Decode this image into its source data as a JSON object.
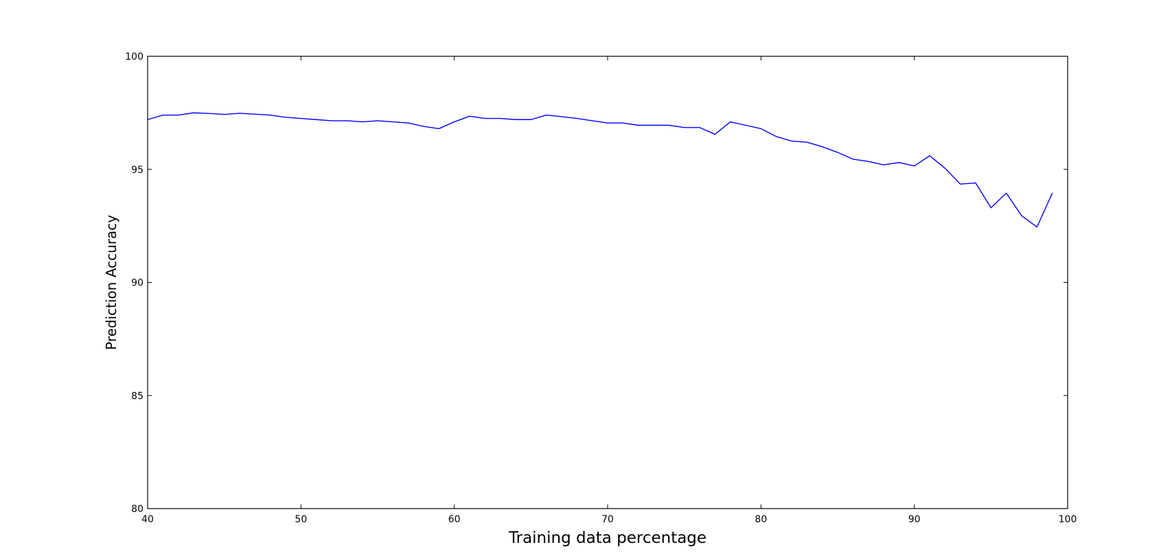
{
  "chart_data": {
    "type": "line",
    "title": "",
    "xlabel": "Training data percentage",
    "ylabel": "Prediction Accuracy",
    "xlim": [
      40,
      100
    ],
    "ylim": [
      80,
      100
    ],
    "grid": false,
    "x_ticks": [
      40,
      50,
      60,
      70,
      80,
      90,
      100
    ],
    "y_ticks": [
      80,
      85,
      90,
      95,
      100
    ],
    "line_color": "#0000ff",
    "series": [
      {
        "x": [
          40,
          41,
          42,
          43,
          44,
          45,
          46,
          47,
          48,
          49,
          50,
          51,
          52,
          53,
          54,
          55,
          56,
          57,
          58,
          59,
          60,
          61,
          62,
          63,
          64,
          65,
          66,
          67,
          68,
          69,
          70,
          71,
          72,
          73,
          74,
          75,
          76,
          77,
          78,
          79,
          80,
          81,
          82,
          83,
          84,
          85,
          86,
          87,
          88,
          89,
          90,
          91,
          92,
          93,
          94,
          95,
          96,
          97,
          98,
          99
        ],
        "values": [
          97.2,
          97.4,
          97.4,
          97.5,
          97.47,
          97.43,
          97.48,
          97.44,
          97.4,
          97.3,
          97.25,
          97.2,
          97.15,
          97.15,
          97.1,
          97.15,
          97.1,
          97.05,
          96.9,
          96.8,
          97.1,
          97.35,
          97.25,
          97.25,
          97.2,
          97.2,
          97.4,
          97.33,
          97.25,
          97.15,
          97.05,
          97.05,
          96.95,
          96.95,
          96.95,
          96.85,
          96.85,
          96.55,
          97.1,
          96.95,
          96.8,
          96.45,
          96.25,
          96.2,
          96.0,
          95.75,
          95.45,
          95.35,
          95.2,
          95.3,
          95.15,
          95.6,
          95.05,
          94.35,
          94.4,
          93.3,
          93.95,
          92.95,
          92.45,
          93.95
        ]
      }
    ]
  }
}
